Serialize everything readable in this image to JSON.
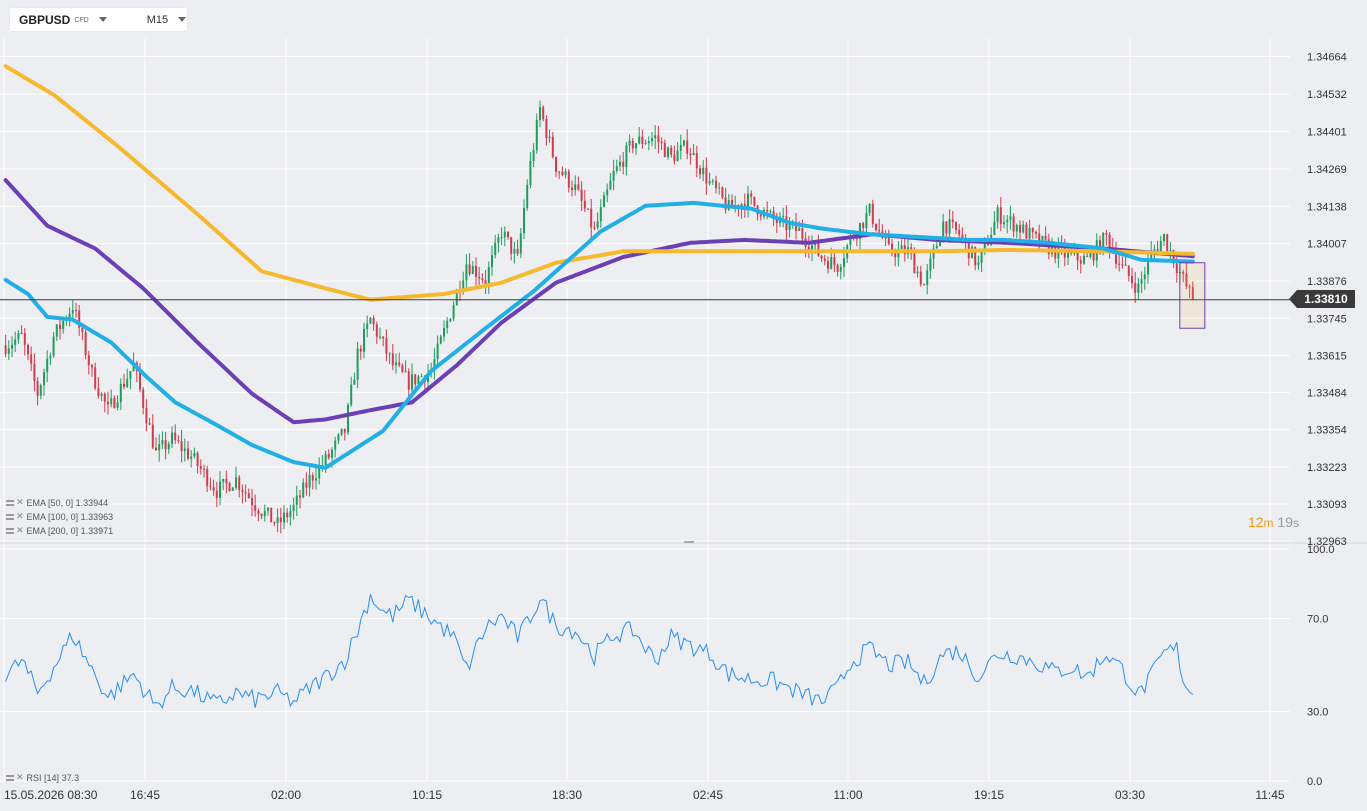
{
  "header": {
    "symbol": "GBPUSD",
    "symbol_type": "CFD",
    "timeframe": "M15"
  },
  "price_axis": {
    "labels": [
      "1.34664",
      "1.34532",
      "1.34401",
      "1.34269",
      "1.34138",
      "1.34007",
      "1.33876",
      "1.33745",
      "1.33615",
      "1.33484",
      "1.33354",
      "1.33223",
      "1.33093",
      "1.32963"
    ],
    "current_price": "1.33810"
  },
  "time_axis": {
    "labels": [
      "15.05.2026 08:30",
      "16:45",
      "02:00",
      "10:15",
      "18:30",
      "02:45",
      "11:00",
      "19:15",
      "03:30",
      "11:45"
    ]
  },
  "legend": {
    "ema50": "EMA [50, 0] 1.33944",
    "ema100": "EMA [100, 0] 1.33963",
    "ema200": "EMA [200, 0] 1.33971",
    "rsi": "RSI [14] 37.3"
  },
  "timer": {
    "minutes": "12",
    "minutes_unit": "m",
    "seconds": "19",
    "seconds_unit": "s"
  },
  "rsi_axis": {
    "labels": [
      "100.0",
      "70.0",
      "30.0",
      "0.0"
    ]
  },
  "colors": {
    "background": "#eceef2",
    "up": "#1e9e5b",
    "down": "#d23b4b",
    "ema50": "#22aee6",
    "ema100": "#6c3fb5",
    "ema200": "#f6b82d",
    "rsi": "#2a8ff0"
  },
  "chart_data": {
    "type": "candlestick",
    "symbol": "GBPUSD",
    "timeframe": "M15",
    "ylim": [
      1.32963,
      1.34729
    ],
    "current_price": 1.3381,
    "overlays": [
      {
        "name": "EMA [50, 0]",
        "color": "#22aee6",
        "last": 1.33944,
        "x": [
          0,
          7,
          13,
          21,
          33,
          44,
          53,
          66,
          77,
          90,
          100,
          118,
          133,
          150,
          165,
          186,
          200,
          215,
          233,
          245,
          255,
          270,
          286,
          301,
          312,
          326,
          343,
          355,
          371
        ],
        "y": [
          1.3388,
          1.3383,
          1.3375,
          1.3374,
          1.3366,
          1.3354,
          1.3345,
          1.3337,
          1.333,
          1.3324,
          1.3322,
          1.3335,
          1.3356,
          1.3371,
          1.3384,
          1.3405,
          1.3414,
          1.3415,
          1.3413,
          1.3408,
          1.3406,
          1.3404,
          1.3403,
          1.3402,
          1.3402,
          1.3401,
          1.3399,
          1.3395,
          1.33944
        ]
      },
      {
        "name": "EMA [100, 0]",
        "color": "#6c3fb5",
        "last": 1.33963,
        "x": [
          0,
          13,
          28,
          43,
          60,
          77,
          90,
          100,
          113,
          127,
          141,
          155,
          172,
          193,
          214,
          231,
          251,
          271,
          291,
          313,
          343,
          371
        ],
        "y": [
          1.3423,
          1.3407,
          1.3399,
          1.3385,
          1.3366,
          1.3348,
          1.3338,
          1.3339,
          1.3342,
          1.3345,
          1.3358,
          1.3373,
          1.3387,
          1.3396,
          1.3401,
          1.3402,
          1.3401,
          1.3404,
          1.3402,
          1.3401,
          1.3399,
          1.33963
        ]
      },
      {
        "name": "EMA [200, 0]",
        "color": "#f6b82d",
        "last": 1.33971,
        "x": [
          0,
          15,
          35,
          60,
          80,
          100,
          114,
          125,
          137,
          155,
          172,
          193,
          214,
          231,
          251,
          271,
          291,
          313,
          343,
          371
        ],
        "y": [
          1.3463,
          1.3453,
          1.3435,
          1.3411,
          1.3391,
          1.3385,
          1.3381,
          1.3382,
          1.3383,
          1.3387,
          1.3394,
          1.3398,
          1.3398,
          1.3398,
          1.3398,
          1.3398,
          1.3398,
          1.33985,
          1.3398,
          1.33971
        ]
      }
    ],
    "price_keypoints": {
      "x": [
        0,
        5,
        10,
        15,
        21,
        27,
        32,
        40,
        47,
        52,
        58,
        66,
        72,
        78,
        85,
        90,
        95,
        101,
        106,
        110,
        114,
        118,
        121,
        126,
        133,
        140,
        144,
        150,
        155,
        160,
        163,
        167,
        172,
        178,
        184,
        190,
        196,
        203,
        208,
        213,
        220,
        226,
        232,
        240,
        248,
        255,
        260,
        264,
        270,
        276,
        282,
        287,
        293,
        298,
        304,
        310,
        316,
        322,
        328,
        333,
        338,
        344,
        349,
        354,
        358,
        362,
        366,
        368,
        371
      ],
      "y": [
        1.3365,
        1.3368,
        1.3348,
        1.3368,
        1.3379,
        1.3355,
        1.3342,
        1.3358,
        1.3327,
        1.3332,
        1.3326,
        1.3314,
        1.3318,
        1.3309,
        1.3302,
        1.3308,
        1.3318,
        1.3326,
        1.3335,
        1.3362,
        1.3374,
        1.3365,
        1.3358,
        1.3352,
        1.3356,
        1.338,
        1.3394,
        1.3388,
        1.3405,
        1.3395,
        1.3422,
        1.3448,
        1.3428,
        1.342,
        1.3405,
        1.3425,
        1.3436,
        1.3438,
        1.3431,
        1.3435,
        1.3422,
        1.3413,
        1.3416,
        1.3409,
        1.3405,
        1.3396,
        1.3393,
        1.3402,
        1.3412,
        1.3398,
        1.3398,
        1.3386,
        1.3408,
        1.3404,
        1.3393,
        1.3411,
        1.3407,
        1.3402,
        1.3398,
        1.3396,
        1.3395,
        1.3403,
        1.3392,
        1.3385,
        1.3397,
        1.3403,
        1.3393,
        1.3388,
        1.3381
      ]
    },
    "rsi": {
      "name": "RSI [14]",
      "last": 37.3,
      "ylim": [
        0,
        100
      ],
      "levels": [
        30,
        70
      ],
      "x": [
        0,
        5,
        10,
        15,
        21,
        27,
        32,
        40,
        47,
        52,
        58,
        66,
        72,
        78,
        85,
        90,
        95,
        101,
        106,
        110,
        114,
        118,
        121,
        126,
        133,
        140,
        144,
        150,
        155,
        160,
        163,
        167,
        172,
        178,
        184,
        190,
        196,
        203,
        208,
        213,
        220,
        226,
        232,
        240,
        248,
        255,
        260,
        264,
        270,
        276,
        282,
        287,
        293,
        298,
        304,
        310,
        316,
        322,
        328,
        333,
        338,
        344,
        349,
        354,
        358,
        362,
        366,
        368,
        371
      ],
      "y": [
        45,
        52,
        38,
        49,
        63,
        48,
        36,
        46,
        32,
        40,
        39,
        33,
        38,
        35,
        38,
        34,
        40,
        46,
        52,
        65,
        80,
        73,
        71,
        78,
        70,
        62,
        48,
        66,
        71,
        62,
        68,
        79,
        67,
        65,
        54,
        63,
        65,
        52,
        62,
        59,
        55,
        46,
        44,
        43,
        38,
        34,
        40,
        51,
        57,
        50,
        51,
        42,
        55,
        56,
        45,
        55,
        54,
        51,
        47,
        49,
        45,
        55,
        48,
        37,
        45,
        55,
        57,
        44,
        37.3
      ]
    }
  }
}
